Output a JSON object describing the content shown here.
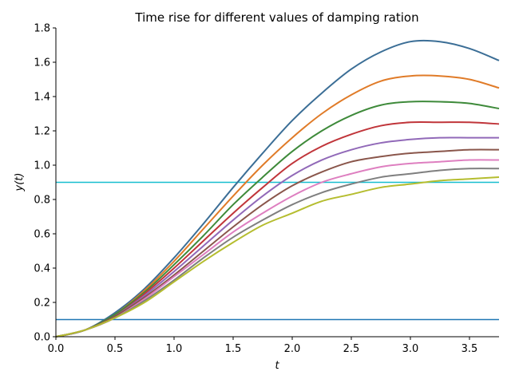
{
  "chart_data": {
    "type": "line",
    "title": "Time rise for different values of damping ration",
    "xlabel": "t",
    "ylabel": "y(t)",
    "xlim": [
      0,
      3.75
    ],
    "ylim": [
      0,
      1.8
    ],
    "x_ticks": [
      "0.0",
      "0.5",
      "1.0",
      "1.5",
      "2.0",
      "2.5",
      "3.0",
      "3.5"
    ],
    "x_tick_values": [
      0,
      0.5,
      1.0,
      1.5,
      2.0,
      2.5,
      3.0,
      3.5
    ],
    "y_ticks": [
      "0.0",
      "0.2",
      "0.4",
      "0.6",
      "0.8",
      "1.0",
      "1.2",
      "1.4",
      "1.6",
      "1.8"
    ],
    "y_tick_values": [
      0,
      0.2,
      0.4,
      0.6,
      0.8,
      1.0,
      1.2,
      1.4,
      1.6,
      1.8
    ],
    "grid": false,
    "legend": "none",
    "reference_lines": [
      {
        "y": 0.9,
        "color": "#17becf"
      },
      {
        "y": 0.1,
        "color": "#1f77b4"
      }
    ],
    "x": [
      0,
      0.25,
      0.5,
      0.75,
      1.0,
      1.25,
      1.5,
      1.75,
      2.0,
      2.25,
      2.5,
      2.75,
      3.0,
      3.25,
      3.5,
      3.75
    ],
    "series": [
      {
        "color": "#3b6e96",
        "values": [
          0,
          0.04,
          0.14,
          0.28,
          0.46,
          0.66,
          0.87,
          1.07,
          1.26,
          1.42,
          1.56,
          1.66,
          1.72,
          1.72,
          1.68,
          1.61
        ]
      },
      {
        "color": "#e07b28",
        "values": [
          0,
          0.04,
          0.13,
          0.27,
          0.44,
          0.63,
          0.82,
          1.0,
          1.16,
          1.3,
          1.41,
          1.49,
          1.52,
          1.52,
          1.5,
          1.45
        ]
      },
      {
        "color": "#3e8a3a",
        "values": [
          0,
          0.04,
          0.13,
          0.26,
          0.42,
          0.59,
          0.77,
          0.93,
          1.08,
          1.2,
          1.29,
          1.35,
          1.37,
          1.37,
          1.36,
          1.33
        ]
      },
      {
        "color": "#c0353a",
        "values": [
          0,
          0.04,
          0.12,
          0.25,
          0.4,
          0.56,
          0.72,
          0.87,
          1.01,
          1.11,
          1.18,
          1.23,
          1.25,
          1.25,
          1.25,
          1.24
        ]
      },
      {
        "color": "#9169b8",
        "values": [
          0,
          0.04,
          0.12,
          0.24,
          0.38,
          0.53,
          0.68,
          0.82,
          0.94,
          1.03,
          1.09,
          1.13,
          1.15,
          1.16,
          1.16,
          1.16
        ]
      },
      {
        "color": "#8a564b",
        "values": [
          0,
          0.04,
          0.12,
          0.23,
          0.36,
          0.5,
          0.64,
          0.77,
          0.88,
          0.96,
          1.02,
          1.05,
          1.07,
          1.08,
          1.09,
          1.09
        ]
      },
      {
        "color": "#de7fc0",
        "values": [
          0,
          0.04,
          0.11,
          0.22,
          0.35,
          0.48,
          0.61,
          0.72,
          0.82,
          0.9,
          0.95,
          0.99,
          1.01,
          1.02,
          1.03,
          1.03
        ]
      },
      {
        "color": "#7f7f7f",
        "values": [
          0,
          0.04,
          0.11,
          0.21,
          0.33,
          0.46,
          0.58,
          0.68,
          0.77,
          0.84,
          0.89,
          0.93,
          0.95,
          0.97,
          0.98,
          0.98
        ]
      },
      {
        "color": "#b5bd2f",
        "values": [
          0,
          0.04,
          0.11,
          0.2,
          0.32,
          0.44,
          0.55,
          0.65,
          0.72,
          0.79,
          0.83,
          0.87,
          0.89,
          0.91,
          0.92,
          0.93
        ]
      }
    ]
  }
}
